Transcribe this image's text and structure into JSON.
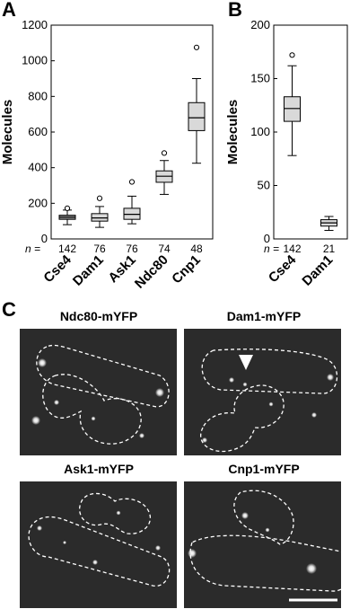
{
  "panel_labels": {
    "a": "A",
    "b": "B",
    "c": "C"
  },
  "n_prefix": "n =",
  "chart_data": [
    {
      "type": "box",
      "panel": "A",
      "ylabel": "Molecules",
      "ylim": [
        0,
        1200
      ],
      "yticks": [
        0,
        200,
        400,
        600,
        800,
        1000,
        1200
      ],
      "grid": false,
      "categories": [
        "Cse4",
        "Dam1",
        "Ask1",
        "Ndc80",
        "Cnp1"
      ],
      "n_values": [
        "142",
        "76",
        "76",
        "74",
        "48"
      ],
      "boxes": [
        {
          "category": "Cse4",
          "whisker_low": 80,
          "q1": 110,
          "median": 122,
          "q3": 133,
          "whisker_high": 162,
          "outliers": [
            172
          ]
        },
        {
          "category": "Dam1",
          "whisker_low": 65,
          "q1": 100,
          "median": 118,
          "q3": 142,
          "whisker_high": 182,
          "outliers": [
            228
          ]
        },
        {
          "category": "Ask1",
          "whisker_low": 85,
          "q1": 110,
          "median": 138,
          "q3": 172,
          "whisker_high": 240,
          "outliers": [
            320
          ]
        },
        {
          "category": "Ndc80",
          "whisker_low": 250,
          "q1": 318,
          "median": 352,
          "q3": 382,
          "whisker_high": 440,
          "outliers": [
            482
          ]
        },
        {
          "category": "Cnp1",
          "whisker_low": 425,
          "q1": 608,
          "median": 680,
          "q3": 765,
          "whisker_high": 900,
          "outliers": [
            1075
          ]
        }
      ]
    },
    {
      "type": "box",
      "panel": "B",
      "ylabel": "Molecules",
      "ylim": [
        0,
        200
      ],
      "yticks": [
        0,
        50,
        100,
        150,
        200
      ],
      "grid": false,
      "categories": [
        "Cse4",
        "Dam1"
      ],
      "n_values": [
        "142",
        "21"
      ],
      "boxes": [
        {
          "category": "Cse4",
          "whisker_low": 78,
          "q1": 110,
          "median": 122,
          "q3": 133,
          "whisker_high": 162,
          "outliers": [
            172
          ]
        },
        {
          "category": "Dam1",
          "whisker_low": 8,
          "q1": 12,
          "median": 15,
          "q3": 18,
          "whisker_high": 21,
          "outliers": []
        }
      ]
    }
  ],
  "micrographs": [
    {
      "title": "Ndc80-mYFP"
    },
    {
      "title": "Dam1-mYFP"
    },
    {
      "title": "Ask1-mYFP"
    },
    {
      "title": "Cnp1-mYFP"
    }
  ],
  "colors": {
    "box_fill": "#d9d9d9",
    "box_fill_dark": "#8f8f8f",
    "line": "#000000",
    "micrograph_bg": "#2b2b2b",
    "cell_outline": "#ffffff",
    "spot": "#ffffff"
  }
}
